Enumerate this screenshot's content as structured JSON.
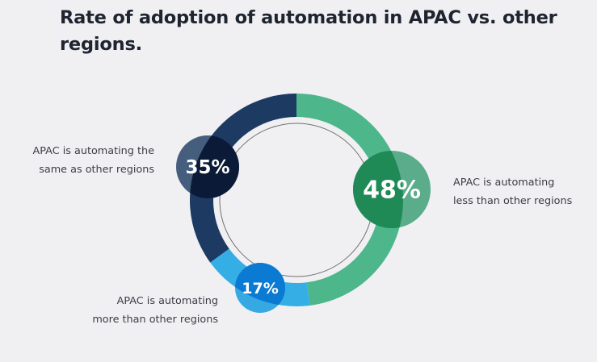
{
  "title": "Rate of adoption of automation in APAC vs. other regions.",
  "chart_data": {
    "type": "pie",
    "variant": "donut",
    "title": "Rate of adoption of automation in APAC vs. other regions.",
    "series": [
      {
        "name": "less",
        "value": 48,
        "label": "48%",
        "description": [
          "APAC is automating",
          "less than other regions"
        ],
        "color": "#4db68b",
        "bubble_color": "#5aac8a",
        "overlap_color": "#1f8a55"
      },
      {
        "name": "more",
        "value": 17,
        "label": "17%",
        "description": [
          "APAC is automating",
          "more than other regions"
        ],
        "color": "#35aee6",
        "bubble_color": "#36a9e3",
        "overlap_color": "#0a7ad3"
      },
      {
        "name": "same",
        "value": 35,
        "label": "35%",
        "description": [
          "APAC is automating the",
          "same as other regions"
        ],
        "color": "#1d3a63",
        "bubble_color": "#465e7e",
        "overlap_color": "#0b1a36"
      }
    ]
  }
}
